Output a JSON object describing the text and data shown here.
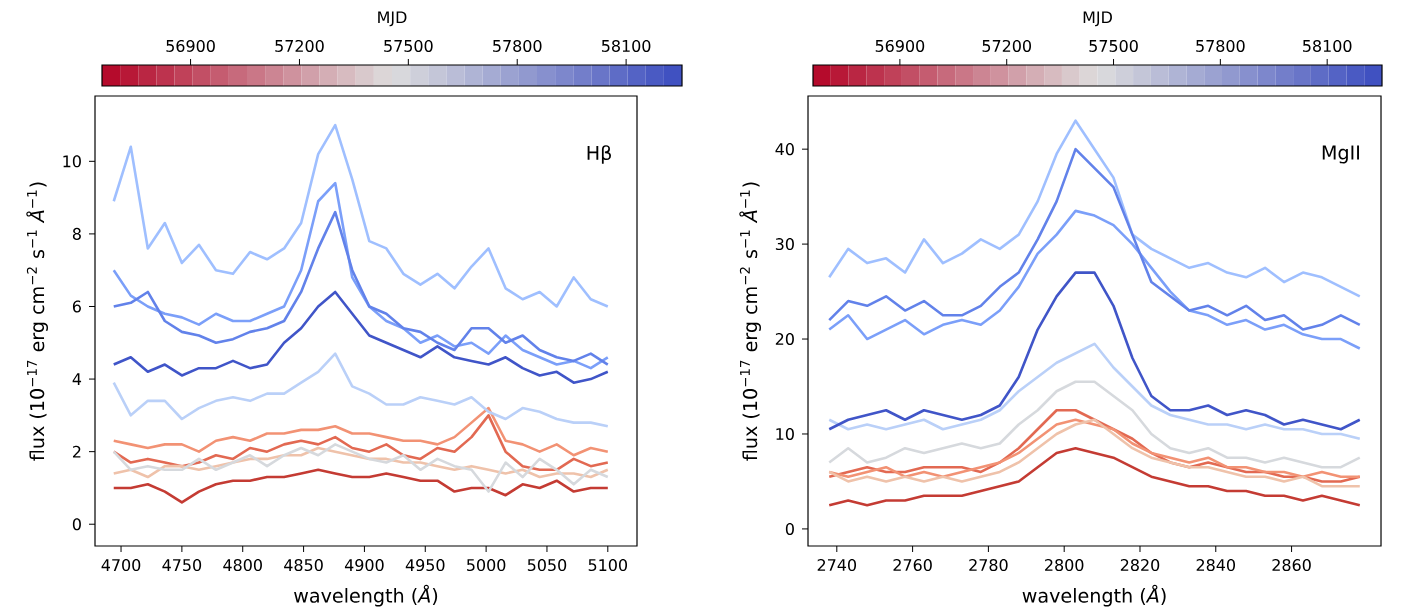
{
  "chart_data": [
    {
      "type": "line",
      "xlabel": "wavelength (*Å*)",
      "ylabel": "flux (10$^{−17}$ erg cm$^{−2}$ s$^{−1}$ *Å*$^{−1}$)",
      "clabel": "MJD",
      "clim": [
        56656,
        58254
      ],
      "cticks": [
        56900,
        57200,
        57500,
        57800,
        58100
      ],
      "xlim": [
        4678.6,
        5124
      ],
      "ylim": [
        -0.6,
        11.8
      ],
      "xticks": [
        4700,
        4750,
        4800,
        4850,
        4900,
        4950,
        5000,
        5050,
        5100
      ],
      "yticks": [
        0,
        2,
        4,
        6,
        8,
        10
      ],
      "annotations": [
        "Hβ"
      ],
      "x": [
        4694,
        4708,
        4722,
        4736,
        4750,
        4764,
        4778,
        4792,
        4806,
        4820,
        4834,
        4848,
        4862,
        4876,
        4890,
        4904,
        4918,
        4932,
        4946,
        4960,
        4974,
        4988,
        5002,
        5016,
        5030,
        5044,
        5058,
        5072,
        5086,
        5100
      ],
      "series": [
        {
          "color": "#c43b33",
          "values": [
            1.0,
            1.0,
            1.1,
            0.9,
            0.6,
            0.9,
            1.1,
            1.2,
            1.2,
            1.3,
            1.3,
            1.4,
            1.5,
            1.4,
            1.3,
            1.3,
            1.4,
            1.3,
            1.2,
            1.2,
            0.9,
            1.0,
            1.0,
            0.8,
            1.1,
            1.0,
            1.2,
            0.9,
            1.0,
            1.0
          ]
        },
        {
          "color": "#e26952",
          "values": [
            2.0,
            1.7,
            1.8,
            1.7,
            1.6,
            1.7,
            1.9,
            1.8,
            2.1,
            2.0,
            2.2,
            2.3,
            2.2,
            2.4,
            2.1,
            2.0,
            2.2,
            1.9,
            1.8,
            2.1,
            2.0,
            2.4,
            3.0,
            2.0,
            1.6,
            1.5,
            1.5,
            1.8,
            1.6,
            1.7
          ]
        },
        {
          "color": "#f29274",
          "values": [
            2.3,
            2.2,
            2.1,
            2.2,
            2.2,
            2.0,
            2.3,
            2.4,
            2.3,
            2.5,
            2.5,
            2.6,
            2.6,
            2.7,
            2.5,
            2.5,
            2.4,
            2.3,
            2.3,
            2.2,
            2.4,
            2.8,
            3.2,
            2.3,
            2.2,
            2.0,
            2.2,
            1.9,
            2.1,
            2.0
          ]
        },
        {
          "color": "#efc2aa",
          "values": [
            1.4,
            1.5,
            1.3,
            1.6,
            1.6,
            1.5,
            1.6,
            1.7,
            1.8,
            1.8,
            1.9,
            1.9,
            2.1,
            2.0,
            1.9,
            1.8,
            1.8,
            1.7,
            1.7,
            1.6,
            1.5,
            1.6,
            1.5,
            1.4,
            1.5,
            1.3,
            1.4,
            1.4,
            1.3,
            1.5
          ]
        },
        {
          "color": "#d6d9dd",
          "values": [
            2.0,
            1.5,
            1.6,
            1.5,
            1.5,
            1.8,
            1.5,
            1.7,
            1.9,
            1.6,
            1.9,
            2.1,
            1.9,
            2.2,
            2.0,
            1.8,
            1.7,
            1.9,
            1.5,
            1.8,
            1.6,
            1.5,
            0.9,
            1.7,
            1.3,
            1.8,
            1.5,
            1.1,
            1.5,
            1.3
          ]
        },
        {
          "color": "#bad0f8",
          "values": [
            3.9,
            3.0,
            3.4,
            3.4,
            2.9,
            3.2,
            3.4,
            3.5,
            3.4,
            3.6,
            3.6,
            3.9,
            4.2,
            4.7,
            3.8,
            3.6,
            3.3,
            3.3,
            3.5,
            3.4,
            3.3,
            3.5,
            3.1,
            2.9,
            3.2,
            3.1,
            2.9,
            2.8,
            2.8,
            2.7
          ]
        },
        {
          "color": "#9fbfff",
          "values": [
            8.9,
            10.4,
            7.6,
            8.3,
            7.2,
            7.7,
            7.0,
            6.9,
            7.5,
            7.3,
            7.6,
            8.3,
            10.2,
            11.0,
            9.5,
            7.8,
            7.6,
            6.9,
            6.6,
            6.9,
            6.5,
            7.1,
            7.6,
            6.5,
            6.2,
            6.4,
            6.0,
            6.8,
            6.2,
            6.0
          ]
        },
        {
          "color": "#7b9ff9",
          "values": [
            7.0,
            6.3,
            6.0,
            5.8,
            5.7,
            5.5,
            5.8,
            5.6,
            5.6,
            5.8,
            6.0,
            7.0,
            8.9,
            9.4,
            6.8,
            6.0,
            5.6,
            5.4,
            5.0,
            5.2,
            4.9,
            5.0,
            4.7,
            5.2,
            4.8,
            4.6,
            4.4,
            4.5,
            4.3,
            4.6
          ]
        },
        {
          "color": "#6282ea",
          "values": [
            6.0,
            6.1,
            6.4,
            5.6,
            5.3,
            5.2,
            5.0,
            5.1,
            5.3,
            5.4,
            5.6,
            6.4,
            7.6,
            8.6,
            7.0,
            6.0,
            5.8,
            5.4,
            5.3,
            5.0,
            4.8,
            5.4,
            5.4,
            5.0,
            5.2,
            4.8,
            4.6,
            4.5,
            4.7,
            4.4
          ]
        },
        {
          "color": "#4055c8",
          "values": [
            4.4,
            4.6,
            4.2,
            4.4,
            4.1,
            4.3,
            4.3,
            4.5,
            4.3,
            4.4,
            5.0,
            5.4,
            6.0,
            6.4,
            5.8,
            5.2,
            5.0,
            4.8,
            4.6,
            4.9,
            4.6,
            4.5,
            4.4,
            4.6,
            4.3,
            4.1,
            4.2,
            3.9,
            4.0,
            4.2
          ]
        }
      ]
    },
    {
      "type": "line",
      "xlabel": "wavelength (*Å*)",
      "ylabel": "flux (10$^{−17}$ erg cm$^{−2}$ s$^{−1}$ *Å*$^{−1}$)",
      "clabel": "MJD",
      "clim": [
        56656,
        58254
      ],
      "cticks": [
        56900,
        57200,
        57500,
        57800,
        58100
      ],
      "xlim": [
        2732.4,
        2883.6
      ],
      "ylim": [
        -1.8,
        45.6
      ],
      "xticks": [
        2740,
        2760,
        2780,
        2800,
        2820,
        2840,
        2860
      ],
      "yticks": [
        0,
        10,
        20,
        30,
        40
      ],
      "annotations": [
        "MgII"
      ],
      "x": [
        2738,
        2743,
        2748,
        2753,
        2758,
        2763,
        2768,
        2773,
        2778,
        2783,
        2788,
        2793,
        2798,
        2803,
        2808,
        2813,
        2818,
        2823,
        2828,
        2833,
        2838,
        2843,
        2848,
        2853,
        2858,
        2863,
        2868,
        2873,
        2878
      ],
      "series": [
        {
          "color": "#c43b33",
          "values": [
            2.5,
            3.0,
            2.5,
            3.0,
            3.0,
            3.5,
            3.5,
            3.5,
            4.0,
            4.5,
            5.0,
            6.5,
            8.0,
            8.5,
            8.0,
            7.5,
            6.5,
            5.5,
            5.0,
            4.5,
            4.5,
            4.0,
            4.0,
            3.5,
            3.5,
            3.0,
            3.5,
            3.0,
            2.5
          ]
        },
        {
          "color": "#e26952",
          "values": [
            5.5,
            6.0,
            6.5,
            6.0,
            6.0,
            6.5,
            6.5,
            6.5,
            6.0,
            7.0,
            8.5,
            10.5,
            12.5,
            12.5,
            11.5,
            10.5,
            9.5,
            8.0,
            7.0,
            6.5,
            7.0,
            6.5,
            6.0,
            6.0,
            5.5,
            5.5,
            5.0,
            5.0,
            5.5
          ]
        },
        {
          "color": "#f29274",
          "values": [
            6.0,
            5.5,
            6.0,
            6.5,
            5.5,
            6.0,
            5.5,
            6.0,
            6.5,
            7.0,
            8.0,
            9.5,
            11.0,
            11.5,
            11.0,
            10.5,
            9.0,
            8.0,
            7.5,
            7.0,
            7.5,
            6.5,
            6.5,
            6.0,
            6.0,
            5.5,
            6.0,
            5.5,
            5.5
          ]
        },
        {
          "color": "#efc2aa",
          "values": [
            6.0,
            5.0,
            5.5,
            5.0,
            5.5,
            5.0,
            5.5,
            5.0,
            5.5,
            6.0,
            7.0,
            8.5,
            10.0,
            11.0,
            11.5,
            10.0,
            8.5,
            7.5,
            7.0,
            6.5,
            6.5,
            6.0,
            5.5,
            5.5,
            5.0,
            5.5,
            4.5,
            4.5,
            4.5
          ]
        },
        {
          "color": "#d6d9dd",
          "values": [
            7.0,
            8.5,
            7.0,
            7.5,
            8.5,
            8.0,
            8.5,
            9.0,
            8.5,
            9.0,
            11.0,
            12.5,
            14.5,
            15.5,
            15.5,
            14.0,
            12.5,
            10.0,
            8.5,
            8.0,
            8.5,
            7.5,
            7.5,
            7.0,
            7.5,
            7.0,
            6.5,
            6.5,
            7.5
          ]
        },
        {
          "color": "#bad0f8",
          "values": [
            11.5,
            10.5,
            11.0,
            10.5,
            11.0,
            11.5,
            10.5,
            11.0,
            11.5,
            12.5,
            14.5,
            16.0,
            17.5,
            18.5,
            19.5,
            17.0,
            15.0,
            13.0,
            12.0,
            11.5,
            11.0,
            11.0,
            10.5,
            11.0,
            10.5,
            10.5,
            10.0,
            10.0,
            9.5
          ]
        },
        {
          "color": "#9fbfff",
          "values": [
            26.5,
            29.5,
            28.0,
            28.5,
            27.0,
            30.5,
            28.0,
            29.0,
            30.5,
            29.5,
            31.0,
            34.5,
            39.5,
            43.0,
            40.0,
            37.0,
            31.0,
            29.5,
            28.5,
            27.5,
            28.0,
            27.0,
            26.5,
            27.5,
            26.0,
            27.0,
            26.5,
            25.5,
            24.5
          ]
        },
        {
          "color": "#7b9ff9",
          "values": [
            21.0,
            22.5,
            20.0,
            21.0,
            22.0,
            20.5,
            21.5,
            22.0,
            21.5,
            23.0,
            25.5,
            29.0,
            31.0,
            33.5,
            33.0,
            32.0,
            30.0,
            27.5,
            25.0,
            23.0,
            22.5,
            21.5,
            22.0,
            21.0,
            21.5,
            20.5,
            20.0,
            20.0,
            19.0
          ]
        },
        {
          "color": "#6282ea",
          "values": [
            22.0,
            24.0,
            23.5,
            24.5,
            23.0,
            24.0,
            22.5,
            22.5,
            23.5,
            25.5,
            27.0,
            30.5,
            34.5,
            40.0,
            38.0,
            36.0,
            31.0,
            26.0,
            24.5,
            23.0,
            23.5,
            22.5,
            23.5,
            22.0,
            22.5,
            21.0,
            21.5,
            22.5,
            21.5
          ]
        },
        {
          "color": "#4055c8",
          "values": [
            10.5,
            11.5,
            12.0,
            12.5,
            11.5,
            12.5,
            12.0,
            11.5,
            12.0,
            13.0,
            16.0,
            21.0,
            24.5,
            27.0,
            27.0,
            23.5,
            18.0,
            14.0,
            12.5,
            12.5,
            13.0,
            12.0,
            12.5,
            12.0,
            11.0,
            11.5,
            11.0,
            10.5,
            11.5
          ]
        }
      ]
    }
  ]
}
